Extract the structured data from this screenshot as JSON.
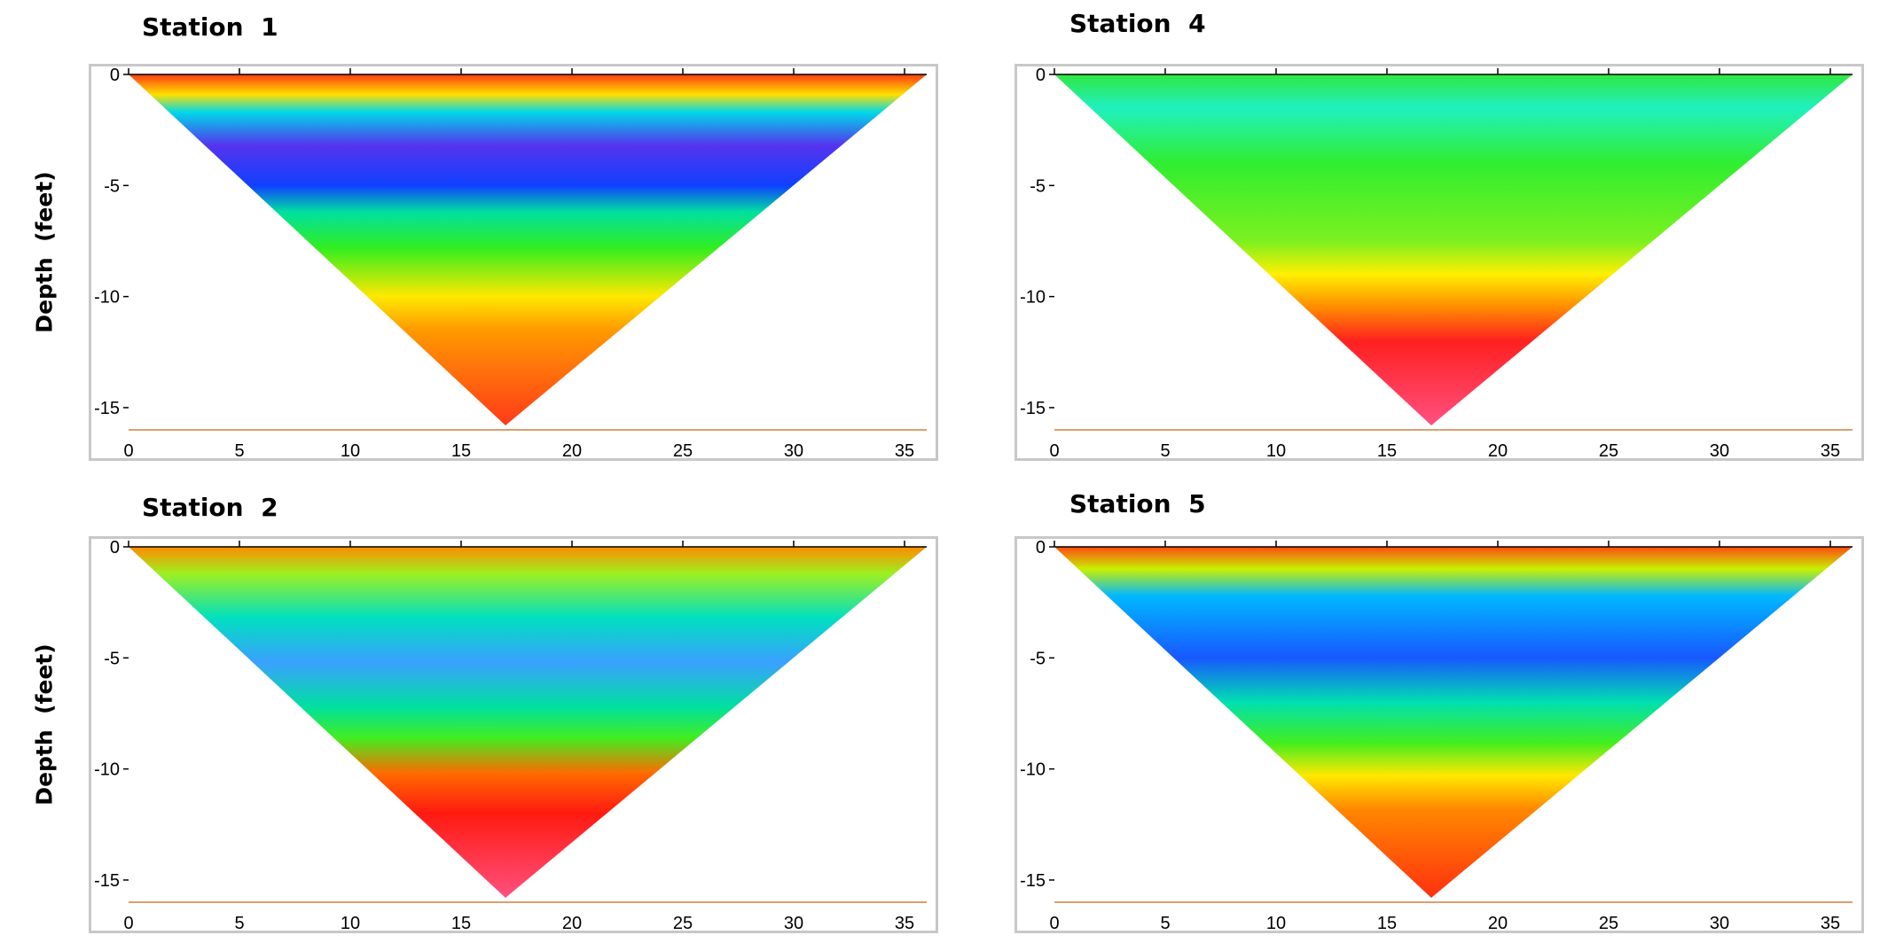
{
  "y_axis_label": "Depth  (feet)",
  "chart_data": [
    {
      "type": "heatmap",
      "title": "Station  1",
      "ylabel": "Depth  (feet)",
      "xlabel": "",
      "xlim": [
        0,
        36
      ],
      "ylim": [
        -16,
        0
      ],
      "x_ticks": [
        "0",
        "5",
        "10",
        "15",
        "20",
        "25",
        "30",
        "35"
      ],
      "y_ticks": [
        "0",
        "-5",
        "-10",
        "-15"
      ],
      "grid": false,
      "section": {
        "x_left": 0,
        "x_right": 36,
        "apex_x": 17,
        "apex_depth": -15.8
      },
      "color_bands": [
        {
          "depth": 0,
          "color": "#ff3b10"
        },
        {
          "depth": -0.9,
          "color": "#ffe000"
        },
        {
          "depth": -1.7,
          "color": "#00d8e8"
        },
        {
          "depth": -3.2,
          "color": "#5533ee"
        },
        {
          "depth": -5.0,
          "color": "#1040ff"
        },
        {
          "depth": -6.2,
          "color": "#00e0a0"
        },
        {
          "depth": -7.8,
          "color": "#30ee20"
        },
        {
          "depth": -10.0,
          "color": "#ffe800"
        },
        {
          "depth": -11.5,
          "color": "#ff9a00"
        },
        {
          "depth": -15.8,
          "color": "#ff3a1a"
        }
      ]
    },
    {
      "type": "heatmap",
      "title": "Station  4",
      "ylabel": "",
      "xlabel": "",
      "xlim": [
        0,
        36
      ],
      "ylim": [
        -16,
        0
      ],
      "x_ticks": [
        "0",
        "5",
        "10",
        "15",
        "20",
        "25",
        "30",
        "35"
      ],
      "y_ticks": [
        "0",
        "-5",
        "-10",
        "-15"
      ],
      "grid": false,
      "section": {
        "x_left": 0,
        "x_right": 36,
        "apex_x": 17,
        "apex_depth": -15.8
      },
      "color_bands": [
        {
          "depth": 0,
          "color": "#30e840"
        },
        {
          "depth": -1.5,
          "color": "#20f0c0"
        },
        {
          "depth": -4.0,
          "color": "#30ee30"
        },
        {
          "depth": -7.5,
          "color": "#7cf020"
        },
        {
          "depth": -9.0,
          "color": "#ffef00"
        },
        {
          "depth": -10.5,
          "color": "#ff8a00"
        },
        {
          "depth": -12.0,
          "color": "#ff2020"
        },
        {
          "depth": -15.8,
          "color": "#ff5080"
        }
      ]
    },
    {
      "type": "heatmap",
      "title": "Station  2",
      "ylabel": "Depth  (feet)",
      "xlabel": "",
      "xlim": [
        0,
        36
      ],
      "ylim": [
        -16,
        0
      ],
      "x_ticks": [
        "0",
        "5",
        "10",
        "15",
        "20",
        "25",
        "30",
        "35"
      ],
      "y_ticks": [
        "0",
        "-5",
        "-10",
        "-15"
      ],
      "grid": false,
      "section": {
        "x_left": 0,
        "x_right": 36,
        "apex_x": 17,
        "apex_depth": -15.8
      },
      "color_bands": [
        {
          "depth": 0,
          "color": "#ff8a00"
        },
        {
          "depth": -1.2,
          "color": "#9ef020"
        },
        {
          "depth": -3.2,
          "color": "#00e0c0"
        },
        {
          "depth": -5.2,
          "color": "#3aa0ff"
        },
        {
          "depth": -7.2,
          "color": "#00e0a0"
        },
        {
          "depth": -8.6,
          "color": "#40ee20"
        },
        {
          "depth": -10.2,
          "color": "#ff6a00"
        },
        {
          "depth": -12.0,
          "color": "#ff1a10"
        },
        {
          "depth": -15.8,
          "color": "#ff5080"
        }
      ]
    },
    {
      "type": "heatmap",
      "title": "Station  5",
      "ylabel": "",
      "xlabel": "",
      "xlim": [
        0,
        36
      ],
      "ylim": [
        -16,
        0
      ],
      "x_ticks": [
        "0",
        "5",
        "10",
        "15",
        "20",
        "25",
        "30",
        "35"
      ],
      "y_ticks": [
        "0",
        "-5",
        "-10",
        "-15"
      ],
      "grid": false,
      "section": {
        "x_left": 0,
        "x_right": 36,
        "apex_x": 17,
        "apex_depth": -15.8
      },
      "color_bands": [
        {
          "depth": 0,
          "color": "#ff4a10"
        },
        {
          "depth": -1.0,
          "color": "#c8f000"
        },
        {
          "depth": -2.2,
          "color": "#00b8ff"
        },
        {
          "depth": -5.0,
          "color": "#1858ff"
        },
        {
          "depth": -7.0,
          "color": "#00e0b0"
        },
        {
          "depth": -8.8,
          "color": "#40ee20"
        },
        {
          "depth": -10.3,
          "color": "#ffe800"
        },
        {
          "depth": -11.8,
          "color": "#ff8800"
        },
        {
          "depth": -15.8,
          "color": "#ff3010"
        }
      ]
    }
  ]
}
